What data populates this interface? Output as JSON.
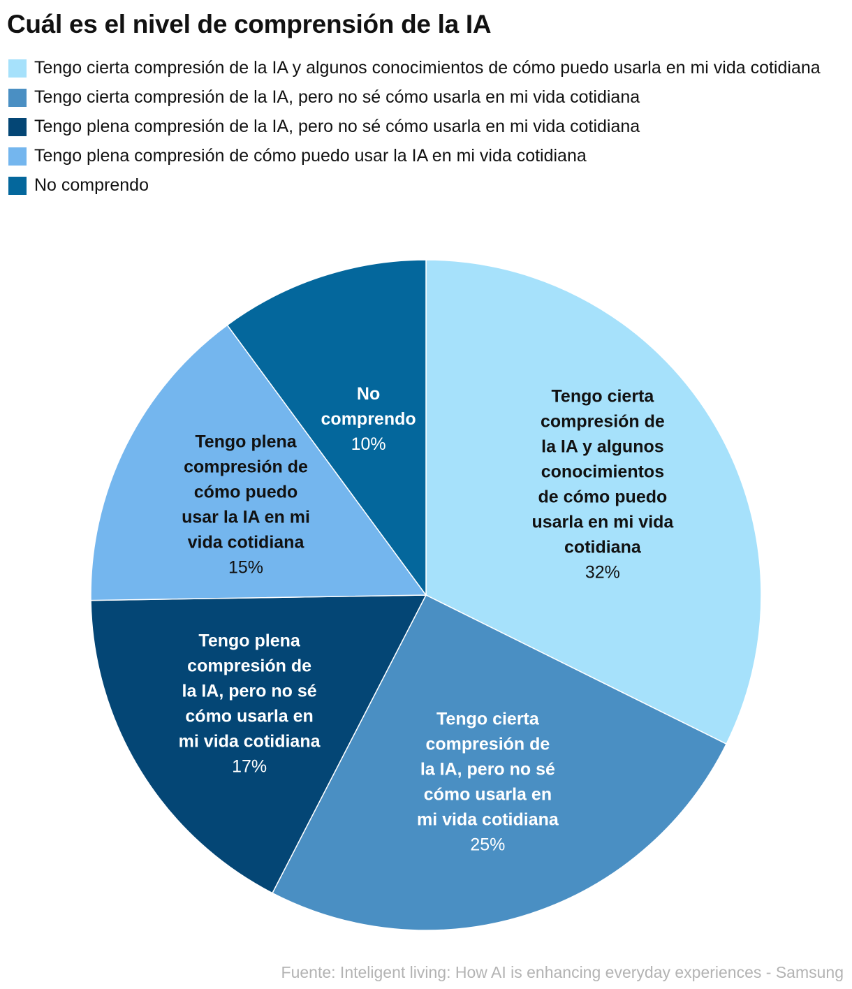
{
  "title": "Cuál es el nivel de comprensión de la IA",
  "legend": [
    {
      "label": "Tengo cierta compresión de la IA y algunos conocimientos de cómo puedo usarla en mi vida cotidiana",
      "color": "#a6e1fb"
    },
    {
      "label": "Tengo cierta compresión de la IA, pero no sé cómo usarla en mi vida cotidiana",
      "color": "#4a8fc3"
    },
    {
      "label": "Tengo plena compresión de la IA, pero no sé cómo usarla en mi vida cotidiana",
      "color": "#044675"
    },
    {
      "label": "Tengo plena compresión de cómo puedo usar la IA en mi vida cotidiana",
      "color": "#74b6ee"
    },
    {
      "label": "No comprendo",
      "color": "#04679c"
    }
  ],
  "chart_data": {
    "type": "pie",
    "title": "Cuál es el nivel de comprensión de la IA",
    "start": "12 o'clock, clockwise",
    "slices": [
      {
        "label": "Tengo cierta compresión de la IA y algunos conocimientos de cómo puedo usarla en mi vida cotidiana",
        "label_lines": [
          "Tengo cierta",
          "compresión de",
          "la IA y algunos",
          "conocimientos",
          "de cómo puedo",
          "usarla en mi vida",
          "cotidiana"
        ],
        "value": 32,
        "value_label": "32%",
        "color": "#a6e1fb",
        "text_color": "#111111"
      },
      {
        "label": "Tengo cierta compresión de la IA, pero no sé cómo usarla en mi vida cotidiana",
        "label_lines": [
          "Tengo cierta",
          "compresión de",
          "la IA, pero no sé",
          "cómo usarla en",
          "mi vida cotidiana"
        ],
        "value": 25,
        "value_label": "25%",
        "color": "#4a8fc3",
        "text_color": "#ffffff"
      },
      {
        "label": "Tengo plena compresión de la IA, pero no sé cómo usarla en mi vida cotidiana",
        "label_lines": [
          "Tengo plena",
          "compresión de",
          "la IA, pero no sé",
          "cómo usarla en",
          "mi vida cotidiana"
        ],
        "value": 17,
        "value_label": "17%",
        "color": "#044675",
        "text_color": "#ffffff"
      },
      {
        "label": "Tengo plena compresión de cómo puedo usar la IA en mi vida cotidiana",
        "label_lines": [
          "Tengo plena",
          "compresión de",
          "cómo puedo",
          "usar la IA en mi",
          "vida cotidiana"
        ],
        "value": 15,
        "value_label": "15%",
        "color": "#74b6ee",
        "text_color": "#111111"
      },
      {
        "label": "No comprendo",
        "label_lines": [
          "No",
          "comprendo"
        ],
        "value": 10,
        "value_label": "10%",
        "color": "#04679c",
        "text_color": "#ffffff"
      }
    ]
  },
  "source": "Fuente: Inteligent living: How AI is enhancing everyday experiences - Samsung"
}
